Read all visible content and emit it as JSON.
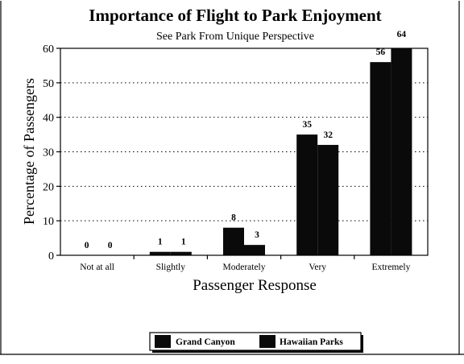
{
  "chart_data": {
    "type": "bar",
    "title": "Importance of Flight to Park Enjoyment",
    "subtitle": "See Park From Unique Perspective",
    "xlabel": "Passenger Response",
    "ylabel": "Percentage of Passengers",
    "categories": [
      "Not at all",
      "Slightly",
      "Moderately",
      "Very",
      "Extremely"
    ],
    "series": [
      {
        "name": "Grand Canyon",
        "values": [
          0,
          1,
          8,
          35,
          56
        ],
        "labels": [
          "0",
          "1",
          "8",
          "35",
          "56"
        ]
      },
      {
        "name": "Hawaiian Parks",
        "values": [
          0,
          1,
          3,
          32,
          64
        ],
        "labels": [
          "0",
          "1",
          "3",
          "32",
          "64"
        ]
      }
    ],
    "ylim": [
      0,
      60
    ],
    "yticks": [
      0,
      10,
      20,
      30,
      40,
      50,
      60
    ],
    "ytick_labels": [
      "0",
      "10",
      "20",
      "30",
      "40",
      "50",
      "60"
    ],
    "grid": true,
    "legend_position": "bottom"
  }
}
